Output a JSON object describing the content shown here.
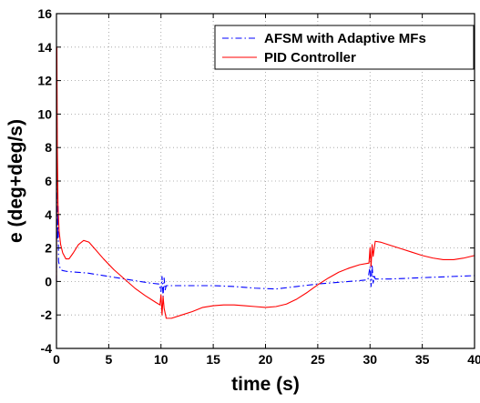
{
  "chart_data": {
    "type": "line",
    "title": "",
    "xlabel": "time (s)",
    "ylabel": "e (deg+deg/s)",
    "xlim": [
      0,
      40
    ],
    "ylim": [
      -4,
      16
    ],
    "xticks": [
      0,
      5,
      10,
      15,
      20,
      25,
      30,
      35,
      40
    ],
    "yticks": [
      -4,
      -2,
      0,
      2,
      4,
      6,
      8,
      10,
      12,
      14,
      16
    ],
    "grid": true,
    "legend_position": "top-right",
    "series": [
      {
        "name": "AFSM with Adaptive MFs",
        "color": "#0000ff",
        "style": "dash-dot",
        "points": [
          [
            0,
            0
          ],
          [
            0.03,
            12.5
          ],
          [
            0.06,
            5.5
          ],
          [
            0.1,
            2.5
          ],
          [
            0.15,
            4.5
          ],
          [
            0.2,
            1.2
          ],
          [
            0.3,
            0.9
          ],
          [
            0.4,
            0.7
          ],
          [
            0.6,
            0.65
          ],
          [
            1,
            0.6
          ],
          [
            2,
            0.55
          ],
          [
            3,
            0.5
          ],
          [
            4,
            0.4
          ],
          [
            5,
            0.3
          ],
          [
            6,
            0.2
          ],
          [
            7,
            0.1
          ],
          [
            8,
            0.0
          ],
          [
            9,
            -0.1
          ],
          [
            9.8,
            -0.15
          ],
          [
            10.0,
            -0.6
          ],
          [
            10.1,
            0.3
          ],
          [
            10.2,
            -0.9
          ],
          [
            10.3,
            0.2
          ],
          [
            10.4,
            -0.5
          ],
          [
            10.5,
            -0.25
          ],
          [
            11,
            -0.25
          ],
          [
            13,
            -0.25
          ],
          [
            15,
            -0.25
          ],
          [
            17,
            -0.3
          ],
          [
            19,
            -0.4
          ],
          [
            21,
            -0.45
          ],
          [
            23,
            -0.3
          ],
          [
            25,
            -0.15
          ],
          [
            27,
            -0.05
          ],
          [
            29,
            0.05
          ],
          [
            29.8,
            0.1
          ],
          [
            30.0,
            0.9
          ],
          [
            30.1,
            -0.3
          ],
          [
            30.2,
            1.0
          ],
          [
            30.3,
            -0.1
          ],
          [
            30.4,
            0.4
          ],
          [
            30.5,
            0.15
          ],
          [
            32,
            0.15
          ],
          [
            34,
            0.2
          ],
          [
            36,
            0.25
          ],
          [
            38,
            0.3
          ],
          [
            40,
            0.35
          ]
        ]
      },
      {
        "name": "PID Controller",
        "color": "#ff0000",
        "style": "solid",
        "points": [
          [
            0,
            0
          ],
          [
            0.04,
            14.0
          ],
          [
            0.08,
            8.0
          ],
          [
            0.15,
            4.5
          ],
          [
            0.25,
            3.0
          ],
          [
            0.4,
            2.2
          ],
          [
            0.6,
            1.7
          ],
          [
            0.9,
            1.35
          ],
          [
            1.2,
            1.35
          ],
          [
            1.6,
            1.7
          ],
          [
            2.1,
            2.2
          ],
          [
            2.6,
            2.45
          ],
          [
            3.1,
            2.35
          ],
          [
            3.6,
            2.0
          ],
          [
            4.5,
            1.35
          ],
          [
            5.5,
            0.7
          ],
          [
            6.5,
            0.15
          ],
          [
            7.5,
            -0.4
          ],
          [
            8.5,
            -0.85
          ],
          [
            9.5,
            -1.25
          ],
          [
            9.9,
            -1.4
          ],
          [
            10.0,
            -0.8
          ],
          [
            10.1,
            -2.0
          ],
          [
            10.2,
            -0.9
          ],
          [
            10.3,
            -1.6
          ],
          [
            10.5,
            -2.2
          ],
          [
            11,
            -2.2
          ],
          [
            12,
            -2.0
          ],
          [
            13,
            -1.8
          ],
          [
            14,
            -1.55
          ],
          [
            15,
            -1.45
          ],
          [
            16,
            -1.4
          ],
          [
            17,
            -1.4
          ],
          [
            18,
            -1.45
          ],
          [
            19,
            -1.5
          ],
          [
            20,
            -1.55
          ],
          [
            21,
            -1.5
          ],
          [
            22,
            -1.35
          ],
          [
            23,
            -1.05
          ],
          [
            24,
            -0.65
          ],
          [
            25,
            -0.2
          ],
          [
            26,
            0.2
          ],
          [
            27,
            0.55
          ],
          [
            28,
            0.8
          ],
          [
            29,
            1.0
          ],
          [
            29.9,
            1.1
          ],
          [
            30.0,
            2.0
          ],
          [
            30.1,
            0.9
          ],
          [
            30.2,
            2.2
          ],
          [
            30.3,
            1.5
          ],
          [
            30.5,
            2.4
          ],
          [
            31,
            2.35
          ],
          [
            32,
            2.15
          ],
          [
            33,
            1.95
          ],
          [
            34,
            1.75
          ],
          [
            35,
            1.55
          ],
          [
            36,
            1.4
          ],
          [
            37,
            1.3
          ],
          [
            38,
            1.3
          ],
          [
            39,
            1.4
          ],
          [
            40,
            1.55
          ]
        ]
      }
    ]
  }
}
